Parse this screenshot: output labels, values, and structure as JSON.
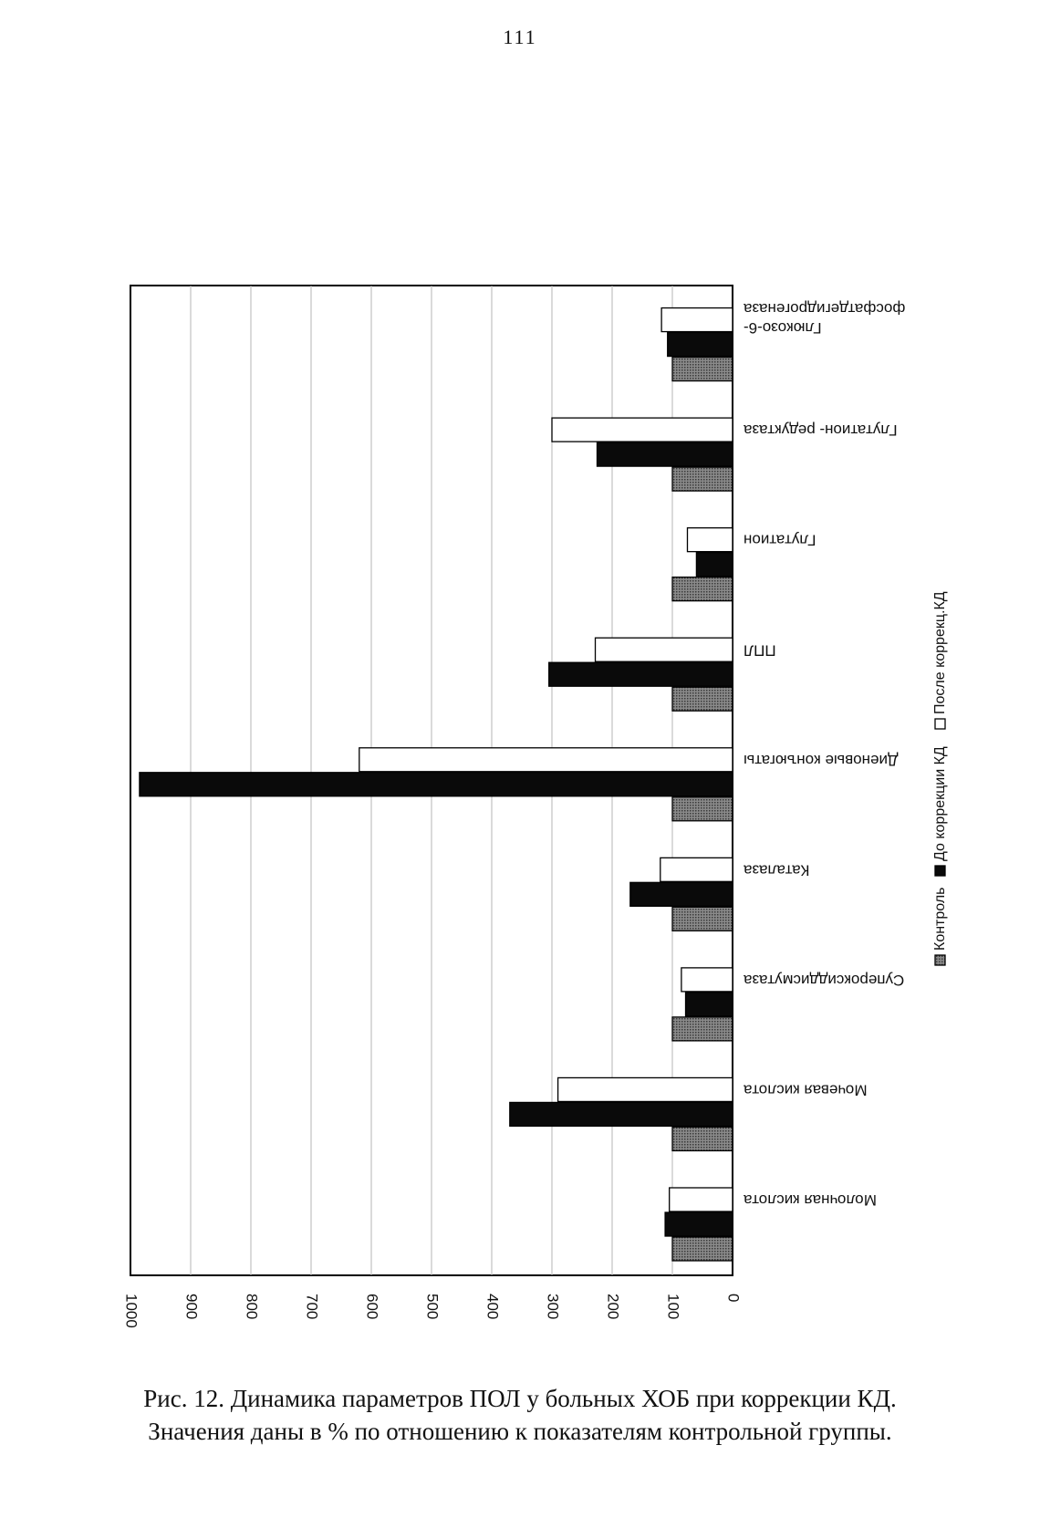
{
  "page": {
    "number": "111"
  },
  "caption": {
    "line1": "Рис. 12. Динамика параметров ПОЛ у больных ХОБ при коррекции КД.",
    "line2": "Значения даны в % по отношению к показателям контрольной группы."
  },
  "chart_data": {
    "type": "bar",
    "orientation": "horizontal bars, page rotated 90° clockwise",
    "title": "",
    "xlabel": "",
    "ylabel": "",
    "ylim": [
      0,
      1000
    ],
    "y_ticks": [
      "0",
      "100",
      "200",
      "300",
      "400",
      "500",
      "600",
      "700",
      "800",
      "900",
      "1000"
    ],
    "grid": "vertical gridlines at every 100",
    "legend_position": "right",
    "categories": [
      [
        "Молочная кислота"
      ],
      [
        "Мочевая кислота"
      ],
      [
        "Супероксиддисмутаза"
      ],
      [
        "Каталаза"
      ],
      [
        "Диеновые конъюгаты"
      ],
      [
        "ППЛ"
      ],
      [
        "Глутатион"
      ],
      [
        "Глутатион- редуктаза"
      ],
      [
        "Глюкозо-6-",
        "фосфатдегидрогеназа"
      ]
    ],
    "series": [
      {
        "name": "Контроль",
        "color": "#6b6b6b",
        "pattern": "dotted",
        "values": [
          100,
          100,
          100,
          100,
          100,
          100,
          100,
          100,
          100
        ]
      },
      {
        "name": "До коррекции КД",
        "color": "#0a0a0a",
        "pattern": "solid",
        "values": [
          112,
          370,
          78,
          170,
          985,
          305,
          60,
          225,
          108
        ]
      },
      {
        "name": "После коррекц.КД",
        "color": "#ffffff",
        "pattern": "outline",
        "values": [
          105,
          290,
          85,
          120,
          620,
          228,
          75,
          300,
          118
        ]
      }
    ]
  }
}
